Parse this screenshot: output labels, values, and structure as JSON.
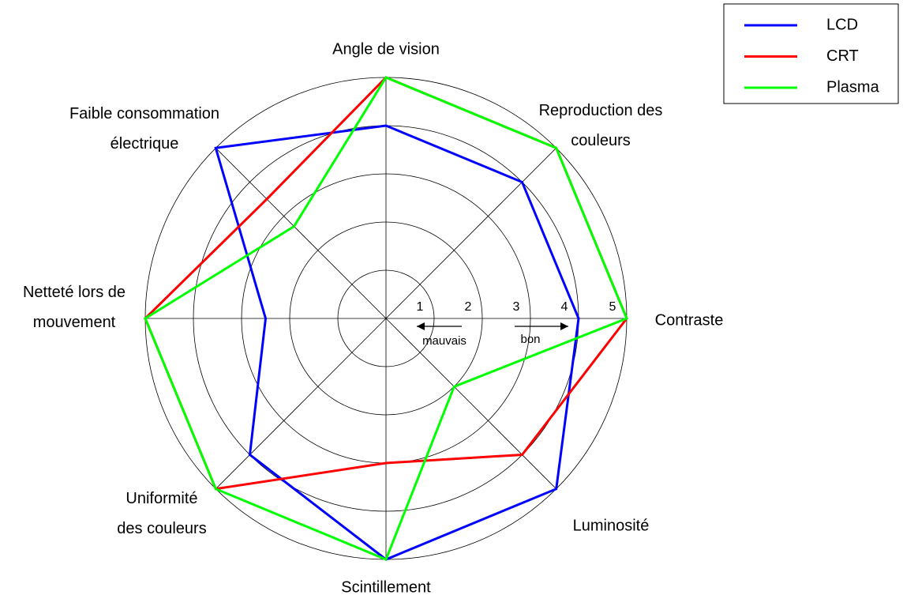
{
  "chart_data": {
    "type": "radar",
    "categories": [
      "Angle de vision",
      "Reproduction des couleurs",
      "Contraste",
      "Luminosité",
      "Scintillement",
      "Uniformité des couleurs",
      "Netteté lors de mouvement",
      "Faible consommation électrique"
    ],
    "series": [
      {
        "name": "LCD",
        "color": "#0000ff",
        "values": [
          4,
          4,
          4,
          5,
          5,
          4,
          2.5,
          5
        ]
      },
      {
        "name": "CRT",
        "color": "#ff0000",
        "values": [
          5,
          5,
          5,
          4,
          3,
          5,
          5,
          3.5
        ]
      },
      {
        "name": "Plasma",
        "color": "#00ff00",
        "values": [
          5,
          5,
          5,
          2,
          5,
          5,
          5,
          2.7
        ]
      }
    ],
    "rlim": [
      0,
      5
    ],
    "rticks": [
      1,
      2,
      3,
      4,
      5
    ],
    "annotations": [
      "mauvais",
      "bon"
    ],
    "legend": "upper right"
  }
}
